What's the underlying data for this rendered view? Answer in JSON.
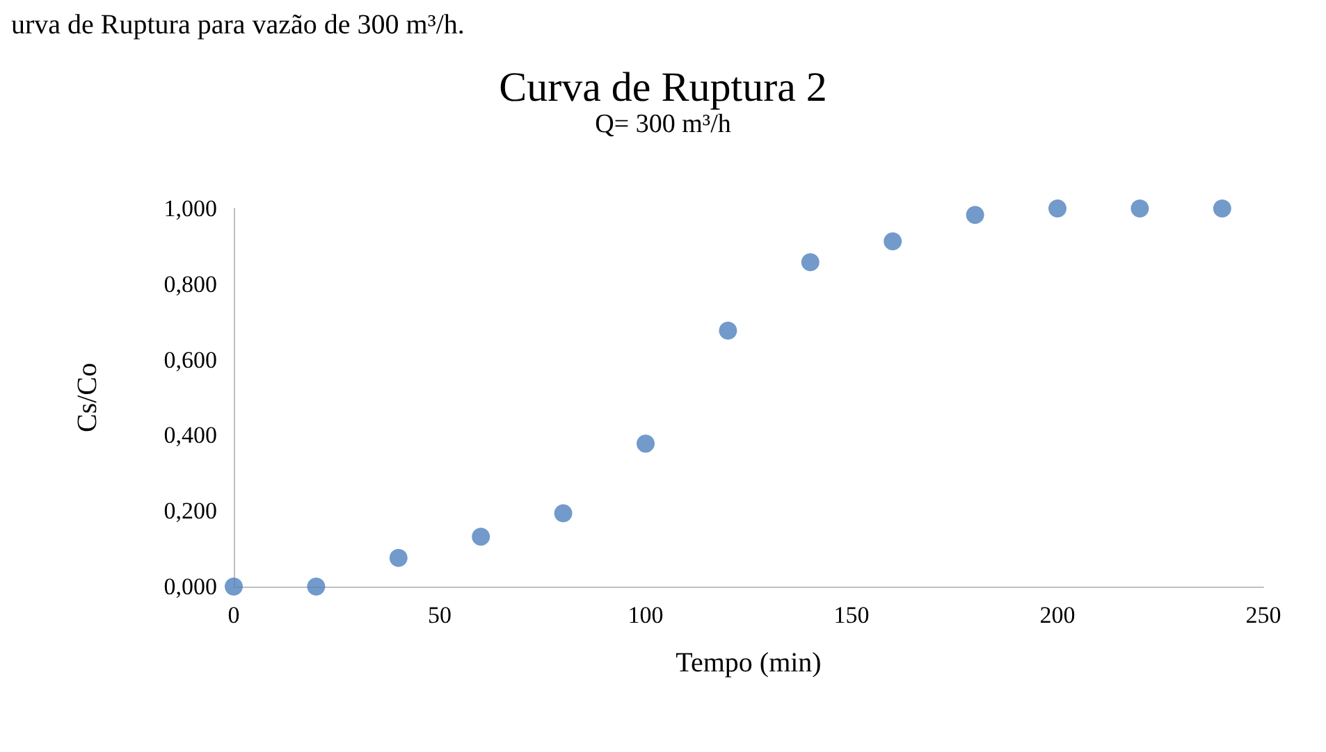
{
  "chart_data": {
    "type": "scatter",
    "title": "Curva de Ruptura 2",
    "subtitle": "Q= 300 m³/h",
    "xlabel": "Tempo (min)",
    "ylabel": "Cs/Co",
    "annotations": [
      "urva de Ruptura para vazão de 300 m³/h."
    ],
    "x": [
      0,
      20,
      40,
      60,
      80,
      100,
      120,
      140,
      160,
      180,
      200,
      220,
      240
    ],
    "series": [
      {
        "color": "#4f81bd",
        "values": [
          0,
          0,
          0.076,
          0.132,
          0.194,
          0.378,
          0.677,
          0.858,
          0.913,
          0.983,
          1.0,
          1.0,
          1.0
        ]
      }
    ],
    "xlim": [
      0,
      250
    ],
    "xticks": [
      0,
      50,
      100,
      150,
      200,
      250
    ],
    "ylim": [
      0,
      1
    ],
    "yticks": [
      {
        "value": 0,
        "label": "0,000"
      },
      {
        "value": 0.2,
        "label": "0,200"
      },
      {
        "value": 0.4,
        "label": "0,400"
      },
      {
        "value": 0.6,
        "label": "0,600"
      },
      {
        "value": 0.8,
        "label": "0,800"
      },
      {
        "value": 1,
        "label": "1,000"
      }
    ],
    "grid": false,
    "marker": "circle"
  }
}
